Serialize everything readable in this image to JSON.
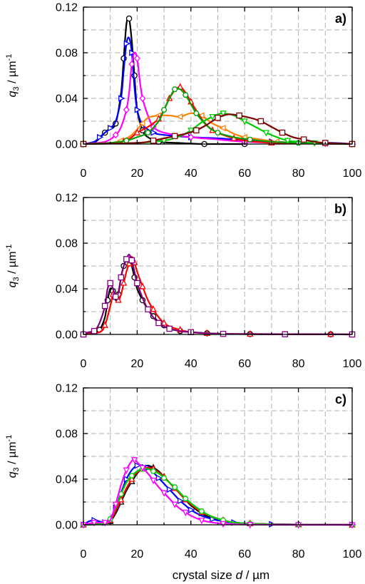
{
  "xaxis_label": {
    "prefix": "crystal size  ",
    "var": "d",
    "unit": " / µm"
  },
  "yaxis_label": {
    "var": "q",
    "sub": "3",
    "unit": " / µm",
    "sup": "-1"
  },
  "chart_data": [
    {
      "type": "line",
      "panel_label": "a)",
      "xlim": [
        0,
        100
      ],
      "ylim": [
        0,
        0.12
      ],
      "xticks": [
        0,
        20,
        40,
        60,
        80,
        100
      ],
      "xtick_labels": [
        "0",
        "20",
        "40",
        "60",
        "80",
        "100"
      ],
      "yticks": [
        0,
        0.04,
        0.08,
        0.12
      ],
      "ytick_labels": [
        "0.00",
        "0.04",
        "0.08",
        "0.12"
      ],
      "grid": true,
      "series": [
        {
          "color": "#000000",
          "marker": "circle",
          "x": [
            0,
            4,
            8,
            10,
            12,
            14,
            15,
            16,
            17,
            18,
            19,
            20,
            22,
            24,
            28,
            35,
            45,
            60
          ],
          "y": [
            0,
            0.001,
            0.01,
            0.014,
            0.018,
            0.045,
            0.075,
            0.105,
            0.11,
            0.09,
            0.06,
            0.03,
            0.012,
            0.006,
            0.002,
            0.001,
            0,
            0
          ]
        },
        {
          "color": "#0000ff",
          "marker": "triangle-right",
          "x": [
            0,
            4,
            6,
            8,
            10,
            12,
            14,
            15,
            16,
            17,
            18,
            19,
            20,
            22,
            26,
            30,
            40,
            50,
            70,
            92,
            100
          ],
          "y": [
            0,
            0.002,
            0.006,
            0.01,
            0.014,
            0.02,
            0.04,
            0.065,
            0.088,
            0.093,
            0.08,
            0.05,
            0.03,
            0.017,
            0.01,
            0.008,
            0.006,
            0.005,
            0.002,
            0.001,
            0
          ]
        },
        {
          "color": "#ff00ff",
          "marker": "diamond",
          "x": [
            0,
            8,
            12,
            14,
            16,
            17,
            18,
            19,
            20,
            21,
            22,
            24,
            26,
            30,
            40,
            50,
            60,
            75,
            90,
            100
          ],
          "y": [
            0,
            0.002,
            0.008,
            0.015,
            0.03,
            0.045,
            0.07,
            0.08,
            0.075,
            0.055,
            0.04,
            0.025,
            0.015,
            0.01,
            0.006,
            0.004,
            0.002,
            0.001,
            0.0005,
            0
          ]
        },
        {
          "color": "#ff8000",
          "marker": "triangle-left",
          "x": [
            0,
            10,
            14,
            18,
            22,
            24,
            28,
            32,
            36,
            40,
            44,
            48,
            52,
            56,
            60,
            66,
            72,
            80,
            90,
            100
          ],
          "y": [
            0,
            0.001,
            0.003,
            0.008,
            0.018,
            0.023,
            0.025,
            0.025,
            0.024,
            0.027,
            0.025,
            0.018,
            0.014,
            0.009,
            0.006,
            0.004,
            0.002,
            0.001,
            0.0005,
            0
          ]
        },
        {
          "color": "#ff0000",
          "marker": "triangle-up",
          "x": [
            0,
            10,
            15,
            18,
            20,
            24,
            28,
            30,
            32,
            34,
            36,
            38,
            40,
            44,
            48,
            52,
            56,
            60,
            70,
            80,
            100
          ],
          "y": [
            0,
            0.001,
            0.002,
            0.006,
            0.01,
            0.015,
            0.022,
            0.03,
            0.04,
            0.047,
            0.05,
            0.045,
            0.037,
            0.022,
            0.012,
            0.008,
            0.005,
            0.003,
            0.001,
            0.0005,
            0
          ]
        },
        {
          "color": "#00a000",
          "marker": "hexagon",
          "x": [
            0,
            10,
            16,
            20,
            24,
            28,
            30,
            32,
            34,
            36,
            38,
            40,
            42,
            46,
            50,
            56,
            62,
            70,
            80,
            90,
            100
          ],
          "y": [
            0,
            0.001,
            0.003,
            0.006,
            0.01,
            0.02,
            0.03,
            0.04,
            0.048,
            0.048,
            0.043,
            0.035,
            0.027,
            0.016,
            0.01,
            0.006,
            0.004,
            0.002,
            0.001,
            0.0005,
            0
          ]
        },
        {
          "color": "#00cc00",
          "marker": "triangle-down",
          "x": [
            0,
            20,
            30,
            36,
            40,
            44,
            48,
            50,
            52,
            56,
            60,
            64,
            68,
            72,
            76,
            80,
            86,
            92,
            100
          ],
          "y": [
            0,
            0.001,
            0.003,
            0.007,
            0.012,
            0.019,
            0.024,
            0.026,
            0.027,
            0.025,
            0.02,
            0.015,
            0.01,
            0.006,
            0.003,
            0.002,
            0.001,
            0.0005,
            0
          ]
        },
        {
          "color": "#800000",
          "marker": "square",
          "x": [
            0,
            20,
            26,
            30,
            34,
            38,
            42,
            46,
            50,
            54,
            58,
            62,
            66,
            70,
            74,
            78,
            82,
            86,
            90,
            95,
            100
          ],
          "y": [
            0,
            0.001,
            0.003,
            0.005,
            0.007,
            0.009,
            0.012,
            0.017,
            0.023,
            0.026,
            0.025,
            0.023,
            0.02,
            0.015,
            0.01,
            0.006,
            0.004,
            0.002,
            0.001,
            0.0005,
            0
          ]
        }
      ]
    },
    {
      "type": "line",
      "panel_label": "b)",
      "xlim": [
        0,
        100
      ],
      "ylim": [
        0,
        0.12
      ],
      "xticks": [
        0,
        20,
        40,
        60,
        80,
        100
      ],
      "xtick_labels": [
        "0",
        "20",
        "40",
        "60",
        "80",
        "100"
      ],
      "yticks": [
        0,
        0.04,
        0.08,
        0.12
      ],
      "ytick_labels": [
        "0.00",
        "0.04",
        "0.08",
        "0.12"
      ],
      "grid": true,
      "series": [
        {
          "color": "#000000",
          "marker": "circle",
          "x": [
            0,
            4,
            6,
            8,
            9,
            10,
            11,
            12,
            13,
            14,
            15,
            16,
            17,
            18,
            19,
            20,
            22,
            24,
            26,
            28,
            30,
            32,
            36,
            40,
            46,
            52,
            62,
            75,
            92,
            100
          ],
          "y": [
            0,
            0.002,
            0.004,
            0.015,
            0.03,
            0.04,
            0.038,
            0.03,
            0.035,
            0.05,
            0.06,
            0.065,
            0.065,
            0.06,
            0.05,
            0.04,
            0.03,
            0.022,
            0.016,
            0.011,
            0.008,
            0.005,
            0.003,
            0.002,
            0.001,
            0.0005,
            0.0003,
            0.0002,
            0.0001,
            0
          ]
        },
        {
          "color": "#ff0000",
          "marker": "triangle-up",
          "x": [
            0,
            6,
            8,
            10,
            11,
            12,
            13,
            14,
            15,
            16,
            17,
            18,
            19,
            20,
            22,
            24,
            26,
            28,
            30,
            32,
            36,
            40,
            46,
            52,
            62,
            75,
            92,
            100
          ],
          "y": [
            0,
            0.002,
            0.008,
            0.025,
            0.035,
            0.035,
            0.03,
            0.035,
            0.045,
            0.055,
            0.062,
            0.068,
            0.063,
            0.055,
            0.042,
            0.03,
            0.022,
            0.015,
            0.01,
            0.007,
            0.004,
            0.002,
            0.001,
            0.0005,
            0.0003,
            0.0002,
            0.0001,
            0
          ]
        },
        {
          "color": "#800080",
          "marker": "square",
          "x": [
            0,
            2,
            4,
            6,
            8,
            9,
            10,
            11,
            12,
            13,
            14,
            15,
            16,
            17,
            18,
            19,
            20,
            22,
            24,
            26,
            28,
            30,
            32,
            36,
            40,
            46,
            52,
            62,
            75,
            92,
            100
          ],
          "y": [
            0,
            0.002,
            0.003,
            0.01,
            0.025,
            0.04,
            0.045,
            0.04,
            0.033,
            0.037,
            0.05,
            0.06,
            0.066,
            0.07,
            0.065,
            0.055,
            0.045,
            0.032,
            0.022,
            0.015,
            0.01,
            0.007,
            0.005,
            0.003,
            0.002,
            0.001,
            0.0005,
            0.0003,
            0.0002,
            0.0001,
            0
          ]
        }
      ]
    },
    {
      "type": "line",
      "panel_label": "c)",
      "xlim": [
        0,
        100
      ],
      "ylim": [
        0,
        0.12
      ],
      "xticks": [
        0,
        20,
        40,
        60,
        80,
        100
      ],
      "xtick_labels": [
        "0",
        "20",
        "40",
        "60",
        "80",
        "100"
      ],
      "yticks": [
        0,
        0.04,
        0.08,
        0.12
      ],
      "ytick_labels": [
        "0.00",
        "0.04",
        "0.08",
        "0.12"
      ],
      "grid": true,
      "series": [
        {
          "color": "#000000",
          "marker": "triangle-up",
          "x": [
            0,
            8,
            10,
            12,
            14,
            16,
            18,
            20,
            22,
            24,
            26,
            28,
            30,
            32,
            34,
            36,
            38,
            40,
            44,
            48,
            52,
            56,
            62,
            70,
            80,
            92,
            100
          ],
          "y": [
            0,
            0.001,
            0.003,
            0.01,
            0.02,
            0.03,
            0.038,
            0.045,
            0.05,
            0.052,
            0.05,
            0.047,
            0.042,
            0.037,
            0.032,
            0.027,
            0.022,
            0.017,
            0.01,
            0.006,
            0.003,
            0.002,
            0.001,
            0.0005,
            0.0003,
            0.0001,
            0
          ]
        },
        {
          "color": "#0000ff",
          "marker": "triangle-right",
          "x": [
            0,
            2,
            4,
            6,
            8,
            10,
            12,
            14,
            16,
            18,
            20,
            22,
            24,
            26,
            28,
            30,
            32,
            34,
            36,
            38,
            40,
            44,
            48,
            52,
            56,
            62,
            70,
            80,
            100
          ],
          "y": [
            0,
            0.003,
            0.004,
            0.003,
            0.002,
            0.006,
            0.015,
            0.028,
            0.04,
            0.048,
            0.052,
            0.052,
            0.05,
            0.046,
            0.041,
            0.036,
            0.031,
            0.026,
            0.021,
            0.017,
            0.013,
            0.008,
            0.005,
            0.003,
            0.002,
            0.001,
            0.0005,
            0.0002,
            0
          ]
        },
        {
          "color": "#ff0000",
          "marker": "triangle-up",
          "x": [
            0,
            8,
            10,
            12,
            14,
            16,
            18,
            20,
            22,
            24,
            26,
            28,
            30,
            32,
            34,
            36,
            38,
            40,
            44,
            48,
            52,
            56,
            62,
            70,
            80,
            100
          ],
          "y": [
            0,
            0.001,
            0.004,
            0.012,
            0.022,
            0.032,
            0.04,
            0.046,
            0.049,
            0.05,
            0.049,
            0.046,
            0.042,
            0.037,
            0.032,
            0.027,
            0.022,
            0.018,
            0.011,
            0.007,
            0.004,
            0.002,
            0.001,
            0.0005,
            0.0002,
            0
          ]
        },
        {
          "color": "#00cc00",
          "marker": "hexagon",
          "x": [
            0,
            8,
            10,
            12,
            14,
            16,
            18,
            20,
            22,
            24,
            26,
            28,
            30,
            32,
            34,
            36,
            38,
            40,
            44,
            48,
            52,
            56,
            62,
            70,
            80,
            100
          ],
          "y": [
            0,
            0.001,
            0.005,
            0.015,
            0.027,
            0.037,
            0.043,
            0.047,
            0.049,
            0.049,
            0.047,
            0.045,
            0.041,
            0.037,
            0.033,
            0.028,
            0.023,
            0.019,
            0.012,
            0.007,
            0.004,
            0.002,
            0.001,
            0.0005,
            0.0002,
            0
          ]
        },
        {
          "color": "#ff00ff",
          "marker": "triangle-down",
          "x": [
            0,
            2,
            4,
            6,
            8,
            10,
            12,
            14,
            16,
            18,
            19,
            20,
            22,
            24,
            26,
            28,
            30,
            32,
            34,
            36,
            38,
            40,
            44,
            48,
            52,
            56,
            62,
            70,
            80,
            100
          ],
          "y": [
            0,
            0.001,
            0.002,
            0.002,
            0.002,
            0.004,
            0.018,
            0.035,
            0.048,
            0.056,
            0.057,
            0.055,
            0.05,
            0.045,
            0.039,
            0.033,
            0.028,
            0.023,
            0.018,
            0.014,
            0.011,
            0.008,
            0.004,
            0.002,
            0.001,
            0.0005,
            0.0002,
            0.0001,
            0,
            0
          ]
        }
      ]
    }
  ]
}
